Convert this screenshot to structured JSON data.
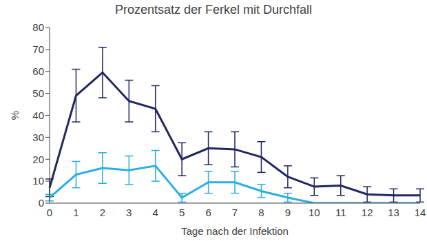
{
  "chart_data": {
    "type": "line",
    "title": "Prozentsatz der Ferkel mit Durchfall",
    "x_label": "Tage nach der Infektion",
    "y_label": "%",
    "categories": [
      "0",
      "1",
      "2",
      "3",
      "4",
      "5",
      "6",
      "7",
      "8",
      "9",
      "10",
      "11",
      "12",
      "13",
      "14"
    ],
    "series": [
      {
        "color": "#1f2860",
        "values": [
          7,
          49,
          59.5,
          46.5,
          43,
          20,
          25,
          24.5,
          21,
          12,
          7.5,
          8,
          4,
          3.5,
          3.5
        ],
        "errors": [
          4,
          12,
          11.5,
          9.5,
          10.5,
          7.5,
          7.5,
          8,
          7,
          5,
          4,
          4.5,
          3.5,
          3,
          3
        ]
      },
      {
        "color": "#2aaee4",
        "values": [
          2.5,
          13,
          16,
          15,
          17,
          2.5,
          9.5,
          9.5,
          5.5,
          2.5,
          0,
          0,
          0,
          0,
          0
        ],
        "errors": [
          1.5,
          6,
          7,
          6.5,
          7,
          2,
          5,
          5,
          3,
          2,
          0,
          0,
          0,
          0,
          0
        ]
      }
    ],
    "ylim": [
      0,
      80
    ],
    "yticks": [
      0,
      10,
      20,
      30,
      40,
      50,
      60,
      70,
      80
    ],
    "grid": false
  }
}
